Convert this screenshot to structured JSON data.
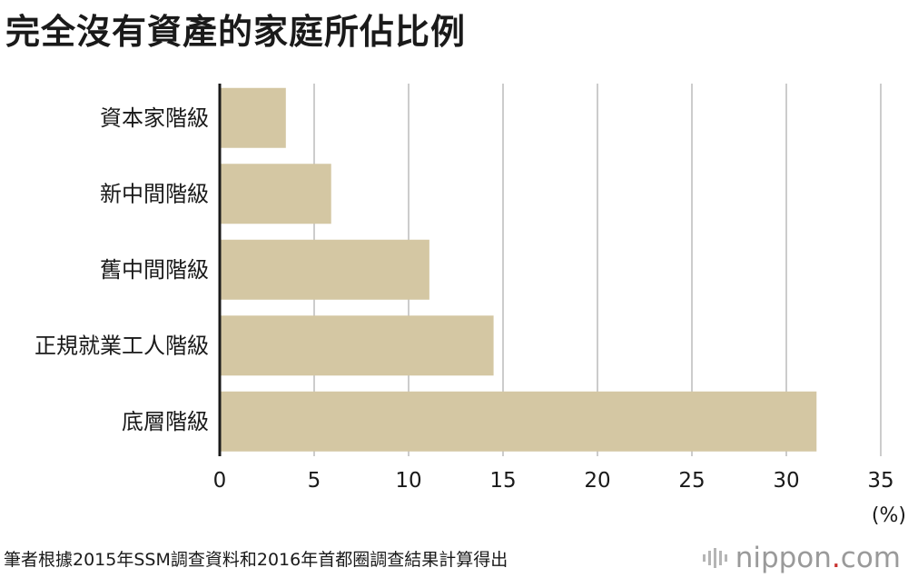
{
  "title": "完全沒有資產的家庭所佔比例",
  "chart_data": {
    "type": "bar",
    "orientation": "horizontal",
    "categories": [
      "資本家階級",
      "新中間階級",
      "舊中間階級",
      "正規就業工人階級",
      "底層階級"
    ],
    "values": [
      3.5,
      5.9,
      11.1,
      14.5,
      31.6
    ],
    "xlim": [
      0,
      35
    ],
    "ticks": [
      "0",
      "5",
      "10",
      "15",
      "20",
      "25",
      "30",
      "35"
    ],
    "tick_values": [
      0,
      5,
      10,
      15,
      20,
      25,
      30,
      35
    ],
    "unit": "(%)",
    "grid": true,
    "bar_color": "#d4c7a3",
    "grid_color": "#cccccc"
  },
  "footer": {
    "source": "筆者根據2015年SSM調查資料和2016年首都圈調查結果計算得出",
    "brand_name": "nippon",
    "brand_dot": ".",
    "brand_tld": "com",
    "brand_icon": "nippon-logo-icon"
  }
}
